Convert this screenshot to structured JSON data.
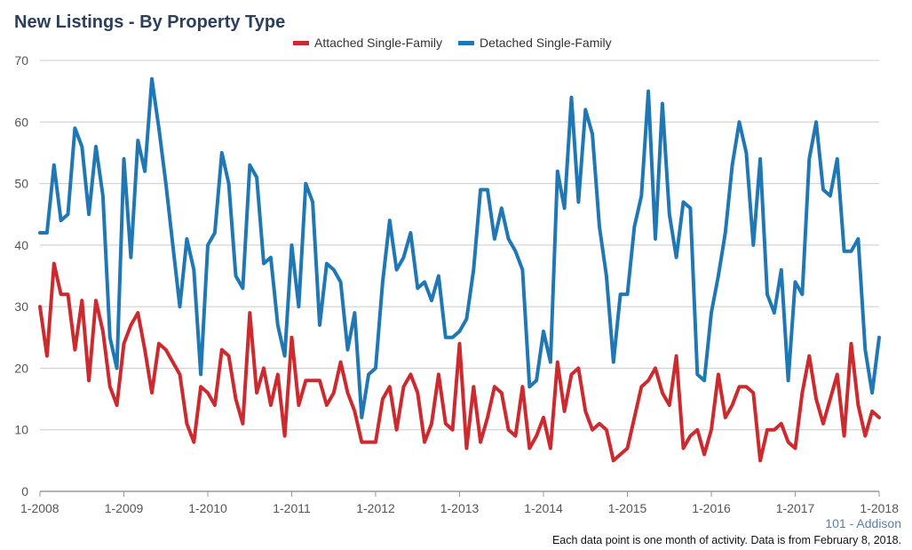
{
  "title": "New Listings - By Property Type",
  "area_label": "101 - Addison",
  "footnote": "Each data point is one month of activity. Data is from February 8, 2018.",
  "colors": {
    "attached": "#cc2a2e",
    "detached": "#1f77b4",
    "grid": "#cccccc",
    "axis": "#999999"
  },
  "chart_data": {
    "type": "line",
    "title": "New Listings - By Property Type",
    "xlabel": "",
    "ylabel": "",
    "ylim": [
      0,
      70
    ],
    "yticks": [
      0,
      10,
      20,
      30,
      40,
      50,
      60,
      70
    ],
    "x_tick_labels": [
      "1-2008",
      "1-2009",
      "1-2010",
      "1-2011",
      "1-2012",
      "1-2013",
      "1-2014",
      "1-2015",
      "1-2016",
      "1-2017",
      "1-2018"
    ],
    "x_start": "1-2008",
    "x_end": "1-2018",
    "grid": true,
    "legend": "top-center",
    "series": [
      {
        "name": "Attached Single-Family",
        "values": [
          30,
          22,
          37,
          32,
          32,
          23,
          31,
          18,
          31,
          26,
          17,
          14,
          24,
          27,
          29,
          23,
          16,
          24,
          23,
          21,
          19,
          11,
          8,
          17,
          16,
          14,
          23,
          22,
          15,
          11,
          29,
          16,
          20,
          14,
          19,
          9,
          25,
          14,
          18,
          18,
          18,
          14,
          16,
          21,
          16,
          13,
          8,
          8,
          8,
          15,
          17,
          10,
          17,
          19,
          16,
          8,
          11,
          19,
          11,
          10,
          24,
          7,
          17,
          8,
          12,
          17,
          16,
          10,
          9,
          17,
          7,
          9,
          12,
          7,
          21,
          13,
          19,
          20,
          13,
          10,
          11,
          10,
          5,
          6,
          7,
          12,
          17,
          18,
          20,
          16,
          14,
          22,
          7,
          9,
          10,
          6,
          10,
          19,
          12,
          14,
          17,
          17,
          16,
          5,
          10,
          10,
          11,
          8,
          7,
          16,
          22,
          15,
          11,
          15,
          19,
          9,
          24,
          14,
          9,
          13,
          12
        ]
      },
      {
        "name": "Detached Single-Family",
        "values": [
          42,
          42,
          53,
          44,
          45,
          59,
          56,
          45,
          56,
          48,
          25,
          20,
          54,
          38,
          57,
          52,
          67,
          59,
          50,
          40,
          30,
          41,
          36,
          19,
          40,
          42,
          55,
          50,
          35,
          33,
          53,
          51,
          37,
          38,
          27,
          22,
          40,
          30,
          50,
          47,
          27,
          37,
          36,
          34,
          23,
          29,
          12,
          19,
          20,
          34,
          44,
          36,
          38,
          42,
          33,
          34,
          31,
          35,
          25,
          25,
          26,
          28,
          36,
          49,
          49,
          41,
          46,
          41,
          39,
          36,
          17,
          18,
          26,
          21,
          52,
          46,
          64,
          47,
          62,
          58,
          43,
          35,
          21,
          32,
          32,
          43,
          48,
          65,
          41,
          63,
          45,
          38,
          47,
          46,
          19,
          18,
          29,
          35,
          42,
          53,
          60,
          55,
          40,
          54,
          32,
          29,
          36,
          18,
          34,
          32,
          54,
          60,
          49,
          48,
          54,
          39,
          39,
          41,
          23,
          16,
          25
        ]
      }
    ]
  }
}
